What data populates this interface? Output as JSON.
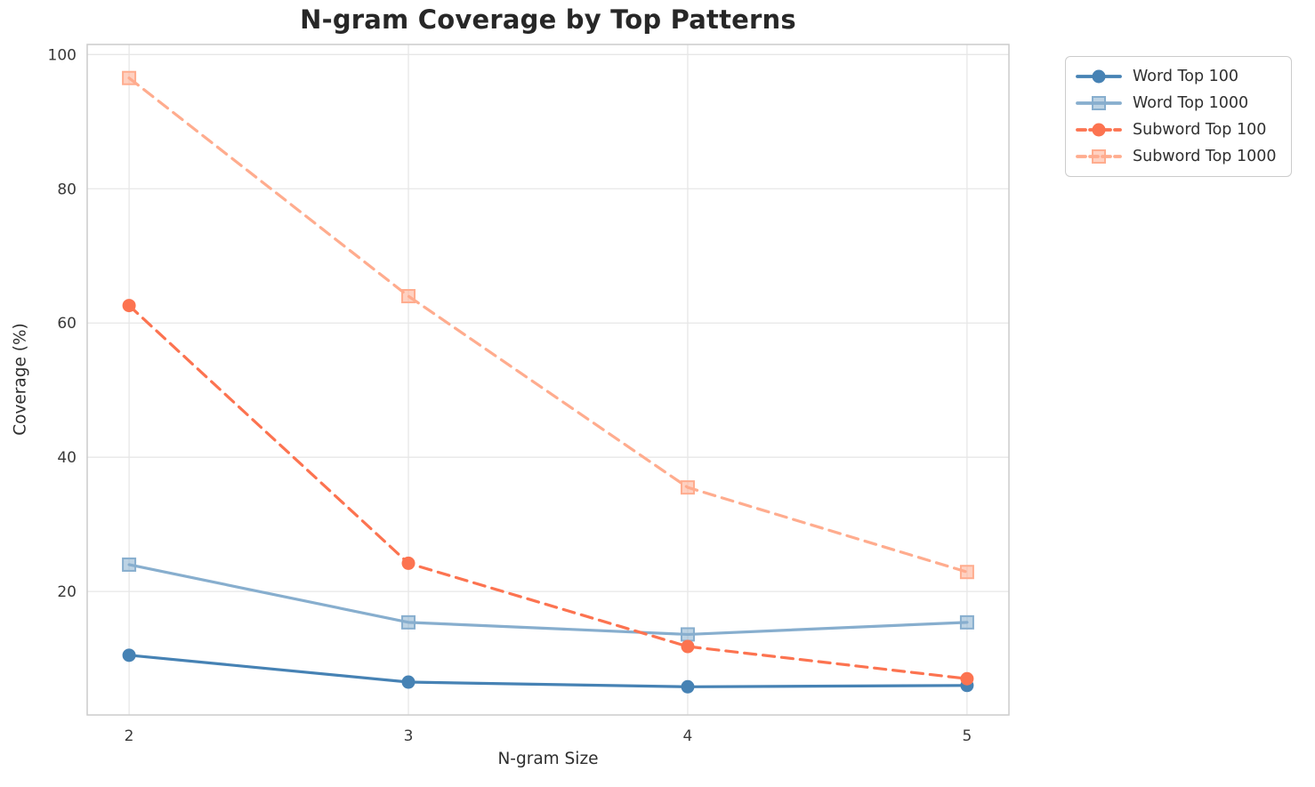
{
  "figure": {
    "kind": "matplotlib-line-chart"
  },
  "chart_data": {
    "type": "line",
    "title": "N-gram Coverage by Top Patterns",
    "xlabel": "N-gram Size",
    "ylabel": "Coverage (%)",
    "x": [
      2,
      3,
      4,
      5
    ],
    "xticks": [
      2,
      3,
      4,
      5
    ],
    "yticks": [
      20,
      40,
      60,
      80,
      100
    ],
    "xlim": [
      1.85,
      5.15
    ],
    "ylim": [
      1.6,
      101.5
    ],
    "grid": true,
    "grid_color": "#e7e7e7",
    "spine_color": "#cccccc",
    "legend_position": "outside-top-right",
    "series": [
      {
        "name": "Word Top 100",
        "color": "#4682B4",
        "marker": "circle",
        "line": "solid",
        "values": [
          10.5,
          6.5,
          5.8,
          6.0
        ]
      },
      {
        "name": "Word Top 1000",
        "color": "#87AECE",
        "marker": "square",
        "line": "solid",
        "values": [
          24.0,
          15.4,
          13.6,
          15.4
        ]
      },
      {
        "name": "Subword Top 100",
        "color": "#FC7350",
        "marker": "circle",
        "line": "dashed",
        "values": [
          62.6,
          24.2,
          11.8,
          7.0
        ]
      },
      {
        "name": "Subword Top 1000",
        "color": "#FFAC8E",
        "marker": "square",
        "line": "dashed",
        "values": [
          96.5,
          64.0,
          35.5,
          22.9
        ]
      }
    ]
  }
}
